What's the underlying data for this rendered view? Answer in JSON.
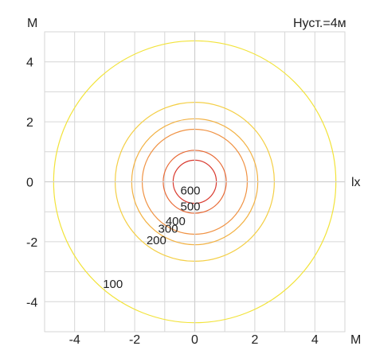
{
  "chart_data": {
    "type": "contour",
    "annotation": "Hуст.=4м",
    "x_unit_label": "М",
    "y_unit_label": "М",
    "value_unit_label": "lx",
    "xlim": [
      -5,
      5
    ],
    "ylim": [
      -5,
      5
    ],
    "x_ticks": [
      "-4",
      "-2",
      "0",
      "2",
      "4"
    ],
    "y_ticks": [
      "4",
      "2",
      "0",
      "-2",
      "-4"
    ],
    "grid": true,
    "levels": [
      {
        "label": "100",
        "value": 100,
        "radius": 4.7,
        "color": "#f2e33a"
      },
      {
        "label": "200",
        "value": 200,
        "radius": 2.65,
        "color": "#f4cf46"
      },
      {
        "label": "300",
        "value": 300,
        "radius": 2.1,
        "color": "#f2b244"
      },
      {
        "label": "400",
        "value": 400,
        "radius": 1.75,
        "color": "#f09243"
      },
      {
        "label": "500",
        "value": 500,
        "radius": 1.05,
        "color": "#e86a35"
      },
      {
        "label": "600",
        "value": 600,
        "radius": 0.72,
        "color": "#d93a2f"
      }
    ]
  }
}
